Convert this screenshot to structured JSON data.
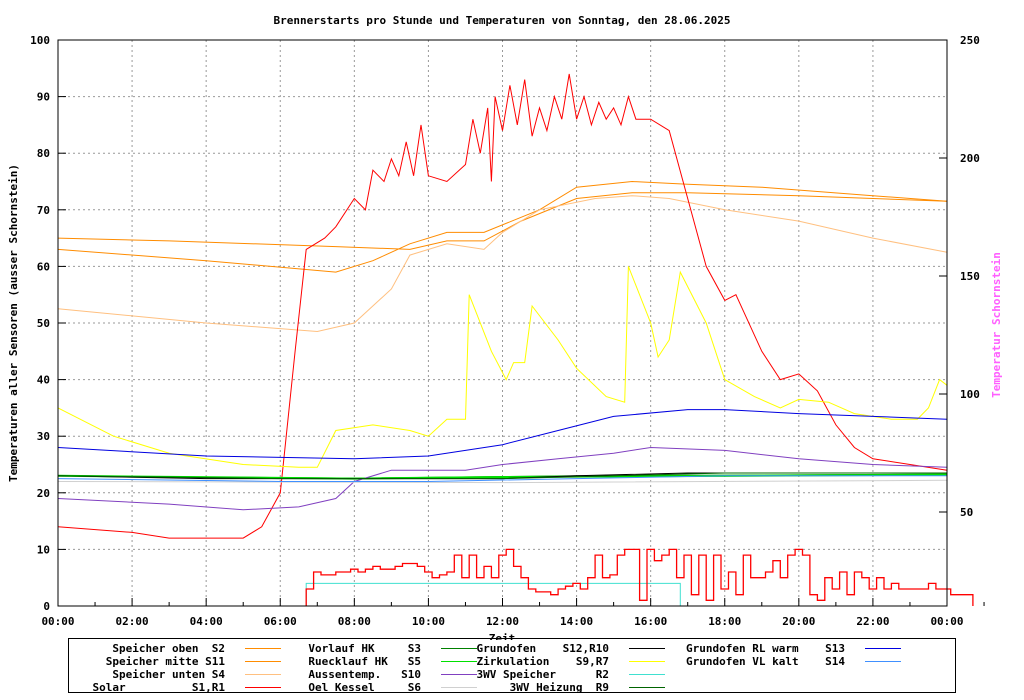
{
  "chart_data": {
    "type": "line",
    "title": "Brennerstarts pro Stunde und Temperaturen von Sonntag, den 28.06.2025",
    "xlabel": "Zeit",
    "ylabel": "Temperaturen aller Sensoren (ausser Schornstein)",
    "y2label": "Temperatur Schornstein",
    "xlim": [
      0,
      24
    ],
    "ylim": [
      0,
      100
    ],
    "y2lim": [
      10,
      250
    ],
    "grid": true,
    "xticks": [
      "00:00",
      "02:00",
      "04:00",
      "06:00",
      "08:00",
      "10:00",
      "12:00",
      "14:00",
      "16:00",
      "18:00",
      "20:00",
      "22:00",
      "00:00"
    ],
    "yticks": [
      "0",
      "10",
      "20",
      "30",
      "40",
      "50",
      "60",
      "70",
      "80",
      "90",
      "100"
    ],
    "y2ticks": [
      "50",
      "100",
      "150",
      "200",
      "250"
    ],
    "legend_placement": "bottom",
    "series": [
      {
        "name": "Speicher oben",
        "code": "S2",
        "color": "#ff8c00",
        "width": 1,
        "points": [
          [
            0,
            65
          ],
          [
            3,
            64.5
          ],
          [
            7.5,
            63.5
          ],
          [
            9.5,
            63
          ],
          [
            10.5,
            64.5
          ],
          [
            11.5,
            64.5
          ],
          [
            12.5,
            68
          ],
          [
            14,
            72
          ],
          [
            15.5,
            73
          ],
          [
            17,
            73
          ],
          [
            20,
            72.5
          ],
          [
            24,
            71.5
          ]
        ]
      },
      {
        "name": "Speicher mitte",
        "code": "S11",
        "color": "#ff8c00",
        "width": 1,
        "points": [
          [
            0,
            63
          ],
          [
            4,
            61
          ],
          [
            7.5,
            59
          ],
          [
            8.5,
            61
          ],
          [
            9.5,
            64
          ],
          [
            10.5,
            66
          ],
          [
            11.5,
            66
          ],
          [
            13,
            70
          ],
          [
            14,
            74
          ],
          [
            15.5,
            75
          ],
          [
            17,
            74.5
          ],
          [
            19,
            74
          ],
          [
            22,
            72.5
          ],
          [
            24,
            71.5
          ]
        ]
      },
      {
        "name": "Speicher unten",
        "code": "S4",
        "color": "#ffc080",
        "width": 1,
        "points": [
          [
            0,
            52.5
          ],
          [
            4,
            50
          ],
          [
            7,
            48.5
          ],
          [
            8,
            50
          ],
          [
            9,
            56
          ],
          [
            9.5,
            62
          ],
          [
            10.5,
            64
          ],
          [
            11.5,
            63
          ],
          [
            12,
            66
          ],
          [
            13,
            70
          ],
          [
            14.5,
            72
          ],
          [
            15.5,
            72.5
          ],
          [
            16.5,
            72
          ],
          [
            18,
            70
          ],
          [
            20,
            68
          ],
          [
            22,
            65
          ],
          [
            24,
            62.5
          ]
        ]
      },
      {
        "name": "Solar",
        "code": "S1,R1",
        "color": "#ff0000",
        "width": 1,
        "points": [
          [
            0,
            14
          ],
          [
            2,
            13
          ],
          [
            3,
            12
          ],
          [
            5,
            12
          ],
          [
            5.5,
            14
          ],
          [
            6,
            20
          ],
          [
            6.4,
            45
          ],
          [
            6.7,
            63
          ],
          [
            7.2,
            65
          ],
          [
            7.5,
            67
          ],
          [
            8,
            72
          ],
          [
            8.3,
            70
          ],
          [
            8.5,
            77
          ],
          [
            8.8,
            75
          ],
          [
            9,
            79
          ],
          [
            9.2,
            76
          ],
          [
            9.4,
            82
          ],
          [
            9.6,
            76
          ],
          [
            9.8,
            85
          ],
          [
            10,
            76
          ],
          [
            10.5,
            75
          ],
          [
            11,
            78
          ],
          [
            11.2,
            86
          ],
          [
            11.4,
            80
          ],
          [
            11.6,
            88
          ],
          [
            11.7,
            75
          ],
          [
            11.8,
            90
          ],
          [
            12,
            84
          ],
          [
            12.2,
            92
          ],
          [
            12.4,
            85
          ],
          [
            12.6,
            93
          ],
          [
            12.8,
            83
          ],
          [
            13,
            88
          ],
          [
            13.2,
            84
          ],
          [
            13.4,
            90
          ],
          [
            13.6,
            86
          ],
          [
            13.8,
            94
          ],
          [
            14,
            86
          ],
          [
            14.2,
            90
          ],
          [
            14.4,
            85
          ],
          [
            14.6,
            89
          ],
          [
            14.8,
            86
          ],
          [
            15,
            88
          ],
          [
            15.2,
            85
          ],
          [
            15.4,
            90
          ],
          [
            15.6,
            86
          ],
          [
            16,
            86
          ],
          [
            16.5,
            84
          ],
          [
            17,
            72
          ],
          [
            17.5,
            60
          ],
          [
            18,
            54
          ],
          [
            18.3,
            55
          ],
          [
            19,
            45
          ],
          [
            19.5,
            40
          ],
          [
            20,
            41
          ],
          [
            20.5,
            38
          ],
          [
            21,
            32
          ],
          [
            21.5,
            28
          ],
          [
            22,
            26
          ],
          [
            23,
            25
          ],
          [
            24,
            24
          ]
        ]
      },
      {
        "name": "Vorlauf HK",
        "code": "S3",
        "color": "#008000",
        "width": 1,
        "points": [
          [
            0,
            23
          ],
          [
            8,
            22.6
          ],
          [
            14,
            23
          ],
          [
            24,
            23.3
          ]
        ]
      },
      {
        "name": "Ruecklauf HK",
        "code": "S5",
        "color": "#00e000",
        "width": 2,
        "points": [
          [
            0,
            23
          ],
          [
            8,
            22.5
          ],
          [
            12,
            22.8
          ],
          [
            24,
            23.2
          ]
        ]
      },
      {
        "name": "Aussentemp.",
        "code": "S10",
        "color": "#8040c0",
        "width": 1,
        "points": [
          [
            0,
            19
          ],
          [
            3,
            18
          ],
          [
            5,
            17
          ],
          [
            6.5,
            17.5
          ],
          [
            7.5,
            19
          ],
          [
            8,
            22
          ],
          [
            9,
            24
          ],
          [
            11,
            24
          ],
          [
            12,
            25
          ],
          [
            13.5,
            26
          ],
          [
            15,
            27
          ],
          [
            16,
            28
          ],
          [
            18,
            27.5
          ],
          [
            20,
            26
          ],
          [
            22,
            25
          ],
          [
            24,
            24.5
          ]
        ]
      },
      {
        "name": "Oel Kessel",
        "code": "S6",
        "color": "#d0d0d0",
        "width": 1,
        "points": [
          [
            0,
            22
          ],
          [
            12,
            21.8
          ],
          [
            24,
            22.2
          ]
        ]
      },
      {
        "name": "Grundofen",
        "code": "S12,R10",
        "color": "#000000",
        "width": 1,
        "points": [
          [
            0,
            23
          ],
          [
            4,
            22.5
          ],
          [
            8,
            22.5
          ],
          [
            12,
            22.5
          ],
          [
            14,
            23
          ],
          [
            17,
            23.5
          ],
          [
            24,
            23.5
          ]
        ]
      },
      {
        "name": "Zirkulation",
        "code": "S9,R7",
        "color": "#ffff00",
        "width": 1,
        "points": [
          [
            0,
            35
          ],
          [
            1.5,
            30
          ],
          [
            3,
            27
          ],
          [
            5,
            25
          ],
          [
            6.5,
            24.5
          ],
          [
            7,
            24.5
          ],
          [
            7.5,
            31
          ],
          [
            8.5,
            32
          ],
          [
            9.5,
            31
          ],
          [
            10,
            30
          ],
          [
            10.5,
            33
          ],
          [
            11,
            33
          ],
          [
            11.1,
            55
          ],
          [
            11.7,
            45
          ],
          [
            12.1,
            40
          ],
          [
            12.3,
            43
          ],
          [
            12.6,
            43
          ],
          [
            12.8,
            53
          ],
          [
            13.5,
            47
          ],
          [
            14,
            42
          ],
          [
            14.8,
            37
          ],
          [
            15.3,
            36
          ],
          [
            15.4,
            60
          ],
          [
            16,
            50
          ],
          [
            16.2,
            44
          ],
          [
            16.5,
            47
          ],
          [
            16.8,
            59
          ],
          [
            17.5,
            50
          ],
          [
            18,
            40
          ],
          [
            18.8,
            37
          ],
          [
            19.5,
            35
          ],
          [
            20,
            36.5
          ],
          [
            20.8,
            36
          ],
          [
            21.5,
            34
          ],
          [
            22.5,
            33
          ],
          [
            23.2,
            33
          ],
          [
            23.5,
            35
          ],
          [
            23.8,
            40
          ],
          [
            24,
            39
          ]
        ]
      },
      {
        "name": "3WV Speicher",
        "code": "R2",
        "color": "#40e0d0",
        "width": 1,
        "step": true,
        "points": [
          [
            0,
            0
          ],
          [
            6.7,
            0
          ],
          [
            6.7,
            4
          ],
          [
            16.8,
            4
          ],
          [
            16.8,
            0
          ],
          [
            24,
            0
          ]
        ]
      },
      {
        "name": "3WV Heizung",
        "code": "R9",
        "color": "#006400",
        "width": 1,
        "points": [
          [
            0,
            23
          ],
          [
            6,
            22.5
          ],
          [
            12,
            22.5
          ],
          [
            18,
            23.5
          ],
          [
            24,
            23.5
          ]
        ]
      },
      {
        "name": "Grundofen RL warm",
        "code": "S13",
        "color": "#0000e0",
        "width": 1,
        "points": [
          [
            0,
            28
          ],
          [
            4,
            26.5
          ],
          [
            8,
            26
          ],
          [
            10,
            26.5
          ],
          [
            12,
            28.5
          ],
          [
            13.5,
            31
          ],
          [
            15,
            33.5
          ],
          [
            17,
            34.7
          ],
          [
            18,
            34.7
          ],
          [
            20,
            34
          ],
          [
            22,
            33.5
          ],
          [
            24,
            33
          ]
        ]
      },
      {
        "name": "Grundofen VL kalt",
        "code": "S14",
        "color": "#4090ff",
        "width": 1,
        "points": [
          [
            0,
            22.5
          ],
          [
            6,
            22
          ],
          [
            10,
            22
          ],
          [
            14,
            22.5
          ],
          [
            18,
            23
          ],
          [
            24,
            23
          ]
        ]
      }
    ],
    "burner_starts": {
      "color": "#ff0000",
      "start": 6.7,
      "step": 0.2,
      "values": [
        3,
        6,
        5.5,
        5.5,
        6,
        6,
        6.5,
        6,
        6.5,
        7,
        6.5,
        6.5,
        7,
        7.5,
        7.5,
        7,
        6,
        5,
        5.5,
        6,
        9,
        5,
        9,
        5,
        7,
        5,
        9,
        10,
        7,
        5,
        3,
        2.5,
        2.5,
        2,
        3,
        3.5,
        4,
        3,
        5,
        9,
        5,
        5.5,
        9,
        10,
        10,
        1,
        10,
        8,
        9,
        10,
        5,
        9,
        2,
        9,
        1,
        9,
        3,
        6,
        2,
        9,
        5,
        5,
        6,
        8,
        5,
        9,
        10,
        9,
        2,
        1,
        5,
        3,
        6,
        2,
        6,
        5,
        3,
        5,
        3,
        4,
        3,
        3,
        3,
        3,
        4,
        3,
        3,
        2,
        2,
        2
      ]
    }
  },
  "legend": [
    {
      "label": "Speicher oben  S2",
      "series": 0
    },
    {
      "label": "Speicher mitte S11",
      "series": 1
    },
    {
      "label": "Speicher unten S4",
      "series": 2
    },
    {
      "label": "Solar          S1,R1",
      "series": 3
    },
    {
      "label": "Vorlauf HK     S3",
      "series": 4
    },
    {
      "label": "Ruecklauf HK   S5",
      "series": 5
    },
    {
      "label": "Aussentemp.   S10",
      "series": 6
    },
    {
      "label": "Oel Kessel     S6",
      "series": 7
    },
    {
      "label": "Grundofen    S12,R10",
      "series": 8
    },
    {
      "label": "Zirkulation    S9,R7",
      "series": 9
    },
    {
      "label": "3WV Speicher      R2",
      "series": 10
    },
    {
      "label": "3WV Heizung  R9",
      "series": 11
    },
    {
      "label": "Grundofen RL warm    S13",
      "series": 12
    },
    {
      "label": "Grundofen VL kalt    S14",
      "series": 13
    }
  ]
}
